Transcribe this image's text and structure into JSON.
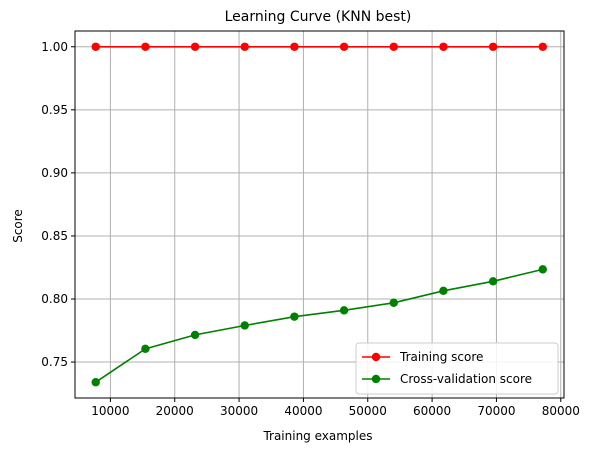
{
  "chart_data": {
    "type": "line",
    "title": "Learning Curve (KNN best)",
    "xlabel": "Training examples",
    "ylabel": "Score",
    "xlim": [
      4500,
      80500
    ],
    "ylim": [
      0.7215,
      1.0125
    ],
    "xticks": [
      10000,
      20000,
      30000,
      40000,
      50000,
      60000,
      70000,
      80000
    ],
    "xtick_labels": [
      "10000",
      "20000",
      "30000",
      "40000",
      "50000",
      "60000",
      "70000",
      "80000"
    ],
    "yticks": [
      0.75,
      0.8,
      0.85,
      0.9,
      0.95,
      1.0
    ],
    "ytick_labels": [
      "0.75",
      "0.80",
      "0.85",
      "0.90",
      "0.95",
      "1.00"
    ],
    "grid": true,
    "legend_position": "lower-right",
    "x": [
      7720,
      15440,
      23160,
      30880,
      38600,
      46320,
      54040,
      61760,
      69480,
      77200
    ],
    "series": [
      {
        "name": "Training score",
        "color": "#ff0000",
        "marker": "circle",
        "values": [
          1.0,
          1.0,
          1.0,
          1.0,
          1.0,
          1.0,
          1.0,
          1.0,
          1.0,
          1.0
        ]
      },
      {
        "name": "Cross-validation score",
        "color": "#008000",
        "marker": "circle",
        "values": [
          0.734,
          0.7605,
          0.7715,
          0.779,
          0.786,
          0.791,
          0.797,
          0.8065,
          0.814,
          0.8235
        ]
      }
    ]
  }
}
